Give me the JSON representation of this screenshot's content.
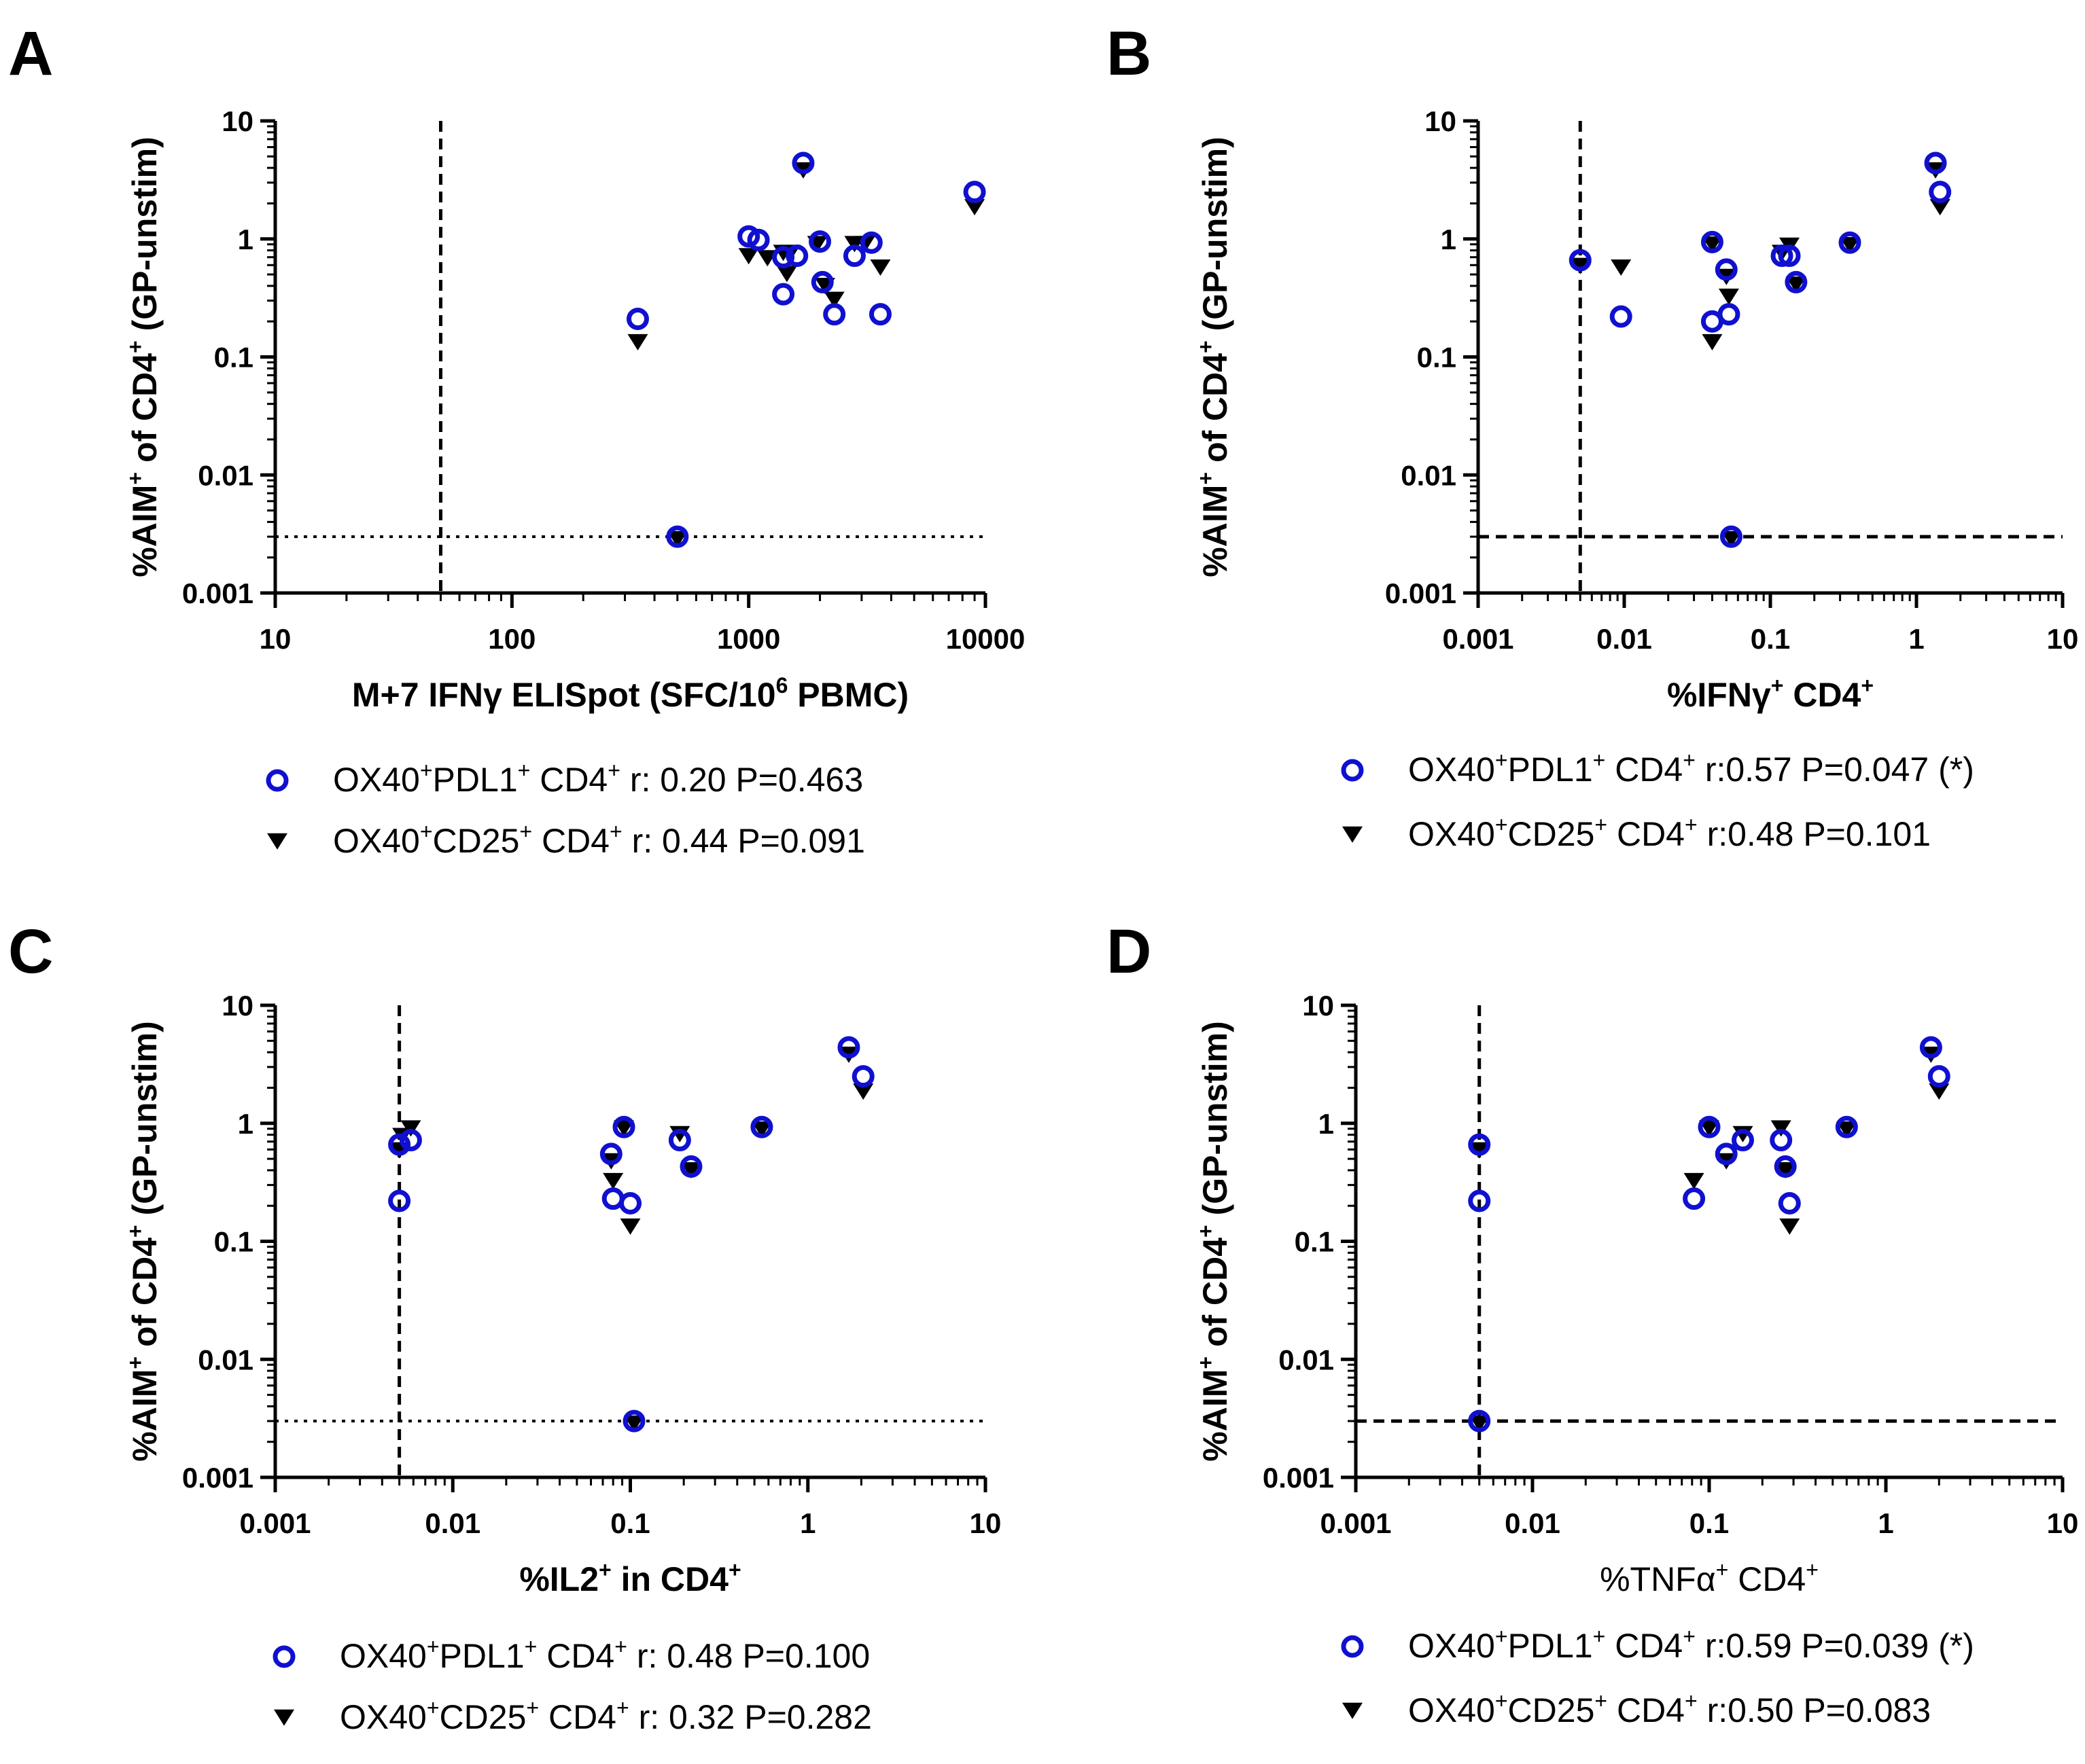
{
  "colors": {
    "series1": "#1010d0",
    "series2": "#000000",
    "axis": "#000000"
  },
  "chart_data": [
    {
      "panel": "A",
      "type": "scatter",
      "xlabel": "M+7 IFNγ ELISpot (SFC/10^6 PBMC)",
      "xlabel_parts": [
        "M+7 IFNγ ELISpot (SFC/10",
        "6",
        " PBMC)"
      ],
      "xlabel_style": "bold",
      "ylabel": "%AIM+ of CD4+ (GP-unstim)",
      "ylabel_parts": [
        "%AIM",
        "+",
        " of CD4",
        "+",
        " (GP-unstim)"
      ],
      "xscale": "log",
      "yscale": "log",
      "xlim": [
        10,
        10000
      ],
      "ylim": [
        0.001,
        10
      ],
      "xticks": [
        "10",
        "100",
        "1000",
        "10000"
      ],
      "yticks": [
        "0.001",
        "0.01",
        "0.1",
        "1",
        "10"
      ],
      "ref_lines": [
        {
          "orientation": "vertical",
          "value": 50,
          "style": "dashed"
        },
        {
          "orientation": "horizontal",
          "value": 0.003,
          "style": "dotted"
        }
      ],
      "series": [
        {
          "name": "OX40+PDL1+ CD4+",
          "marker": "open-circle",
          "points": [
            [
              340,
              0.21
            ],
            [
              500,
              0.003
            ],
            [
              1000,
              1.05
            ],
            [
              1100,
              0.98
            ],
            [
              1400,
              0.7
            ],
            [
              1400,
              0.34
            ],
            [
              1600,
              0.72
            ],
            [
              1700,
              4.4
            ],
            [
              2000,
              0.95
            ],
            [
              2050,
              0.43
            ],
            [
              2300,
              0.23
            ],
            [
              2800,
              0.72
            ],
            [
              3300,
              0.93
            ],
            [
              3600,
              0.23
            ],
            [
              9000,
              2.5
            ]
          ]
        },
        {
          "name": "OX40+CD25+ CD4+",
          "marker": "filled-triangle-down",
          "points": [
            [
              340,
              0.14
            ],
            [
              500,
              0.003
            ],
            [
              1000,
              0.75
            ],
            [
              1200,
              0.72
            ],
            [
              1400,
              0.8
            ],
            [
              1450,
              0.53
            ],
            [
              1500,
              0.8
            ],
            [
              1700,
              4.0
            ],
            [
              1950,
              0.95
            ],
            [
              2100,
              0.42
            ],
            [
              2300,
              0.32
            ],
            [
              2800,
              0.95
            ],
            [
              3100,
              0.95
            ],
            [
              3600,
              0.6
            ],
            [
              9000,
              1.95
            ]
          ]
        }
      ],
      "legend": [
        {
          "series": 0,
          "label_parts": [
            "OX40",
            "+",
            "PDL1",
            "+",
            " CD4",
            "+",
            " r: 0.20 P=0.463"
          ]
        },
        {
          "series": 1,
          "label_parts": [
            "OX40",
            "+",
            "CD25",
            "+",
            " CD4",
            "+",
            " r: 0.44 P=0.091"
          ]
        }
      ]
    },
    {
      "panel": "B",
      "type": "scatter",
      "xlabel": "%IFNγ+ CD4+",
      "xlabel_parts": [
        "%IFNγ",
        "+",
        " CD4",
        "+"
      ],
      "xlabel_style": "bold",
      "ylabel": "%AIM+ of CD4+ (GP-unstim)",
      "ylabel_parts": [
        "%AIM",
        "+",
        " of CD4",
        "+",
        " (GP-unstim)"
      ],
      "xscale": "log",
      "yscale": "log",
      "xlim": [
        0.001,
        10
      ],
      "ylim": [
        0.001,
        10
      ],
      "xticks": [
        "0.001",
        "0.01",
        "0.1",
        "1",
        "10"
      ],
      "yticks": [
        "0.001",
        "0.01",
        "0.1",
        "1",
        "10"
      ],
      "ref_lines": [
        {
          "orientation": "vertical",
          "value": 0.005,
          "style": "dashed"
        },
        {
          "orientation": "horizontal",
          "value": 0.003,
          "style": "dashed"
        }
      ],
      "series": [
        {
          "name": "OX40+PDL1+ CD4+",
          "marker": "open-circle",
          "points": [
            [
              0.005,
              0.66
            ],
            [
              0.0095,
              0.22
            ],
            [
              0.04,
              0.94
            ],
            [
              0.04,
              0.2
            ],
            [
              0.05,
              0.55
            ],
            [
              0.052,
              0.23
            ],
            [
              0.054,
              0.003
            ],
            [
              0.12,
              0.72
            ],
            [
              0.135,
              0.72
            ],
            [
              0.15,
              0.43
            ],
            [
              0.35,
              0.93
            ],
            [
              1.35,
              4.4
            ],
            [
              1.45,
              2.5
            ]
          ]
        },
        {
          "name": "OX40+CD25+ CD4+",
          "marker": "filled-triangle-down",
          "points": [
            [
              0.005,
              0.62
            ],
            [
              0.0095,
              0.6
            ],
            [
              0.04,
              0.94
            ],
            [
              0.04,
              0.14
            ],
            [
              0.05,
              0.5
            ],
            [
              0.052,
              0.34
            ],
            [
              0.054,
              0.003
            ],
            [
              0.12,
              0.8
            ],
            [
              0.135,
              0.92
            ],
            [
              0.15,
              0.43
            ],
            [
              0.35,
              0.93
            ],
            [
              1.35,
              4.0
            ],
            [
              1.45,
              1.95
            ]
          ]
        }
      ],
      "legend": [
        {
          "series": 0,
          "label_parts": [
            "OX40",
            "+",
            "PDL1",
            "+",
            " CD4",
            "+",
            " r:0.57 P=0.047 (*)"
          ]
        },
        {
          "series": 1,
          "label_parts": [
            "OX40",
            "+",
            "CD25",
            "+",
            " CD4",
            "+",
            " r:0.48 P=0.101"
          ]
        }
      ]
    },
    {
      "panel": "C",
      "type": "scatter",
      "xlabel": "%IL2+ in CD4+",
      "xlabel_parts": [
        "%IL2",
        "+",
        " in CD4",
        "+"
      ],
      "xlabel_style": "bold",
      "ylabel": "%AIM+ of CD4+ (GP-unstim)",
      "ylabel_parts": [
        "%AIM",
        "+",
        " of CD4",
        "+",
        " (GP-unstim)"
      ],
      "xscale": "log",
      "yscale": "log",
      "xlim": [
        0.001,
        10
      ],
      "ylim": [
        0.001,
        10
      ],
      "xticks": [
        "0.001",
        "0.01",
        "0.1",
        "1",
        "10"
      ],
      "yticks": [
        "0.001",
        "0.01",
        "0.1",
        "1",
        "10"
      ],
      "ref_lines": [
        {
          "orientation": "vertical",
          "value": 0.005,
          "style": "dashed"
        },
        {
          "orientation": "horizontal",
          "value": 0.003,
          "style": "dotted"
        }
      ],
      "series": [
        {
          "name": "OX40+PDL1+ CD4+",
          "marker": "open-circle",
          "points": [
            [
              0.005,
              0.66
            ],
            [
              0.005,
              0.22
            ],
            [
              0.0058,
              0.72
            ],
            [
              0.078,
              0.55
            ],
            [
              0.08,
              0.23
            ],
            [
              0.092,
              0.93
            ],
            [
              0.1,
              0.21
            ],
            [
              0.105,
              0.003
            ],
            [
              0.19,
              0.72
            ],
            [
              0.22,
              0.43
            ],
            [
              0.55,
              0.93
            ],
            [
              1.7,
              4.4
            ],
            [
              2.05,
              2.5
            ]
          ]
        },
        {
          "name": "OX40+CD25+ CD4+",
          "marker": "filled-triangle-down",
          "points": [
            [
              0.005,
              0.62
            ],
            [
              0.0052,
              0.82
            ],
            [
              0.0058,
              0.95
            ],
            [
              0.078,
              0.5
            ],
            [
              0.08,
              0.34
            ],
            [
              0.092,
              0.95
            ],
            [
              0.1,
              0.14
            ],
            [
              0.105,
              0.003
            ],
            [
              0.19,
              0.85
            ],
            [
              0.22,
              0.42
            ],
            [
              0.55,
              0.93
            ],
            [
              1.7,
              4.0
            ],
            [
              2.05,
              1.95
            ]
          ]
        }
      ],
      "legend": [
        {
          "series": 0,
          "label_parts": [
            "OX40",
            "+",
            "PDL1",
            "+",
            " CD4",
            "+",
            " r: 0.48 P=0.100"
          ]
        },
        {
          "series": 1,
          "label_parts": [
            "OX40",
            "+",
            "CD25",
            "+",
            " CD4",
            "+",
            " r: 0.32 P=0.282"
          ]
        }
      ]
    },
    {
      "panel": "D",
      "type": "scatter",
      "xlabel": "%TNFα+ CD4+",
      "xlabel_parts": [
        "%TNFα",
        "+",
        " CD4",
        "+"
      ],
      "xlabel_style": "plain",
      "ylabel": "%AIM+ of CD4+ (GP-unstim)",
      "ylabel_parts": [
        "%AIM",
        "+",
        " of CD4",
        "+",
        " (GP-unstim)"
      ],
      "xscale": "log",
      "yscale": "log",
      "xlim": [
        0.001,
        10
      ],
      "ylim": [
        0.001,
        10
      ],
      "xticks": [
        "0.001",
        "0.01",
        "0.1",
        "1",
        "10"
      ],
      "yticks": [
        "0.001",
        "0.01",
        "0.1",
        "1",
        "10"
      ],
      "ref_lines": [
        {
          "orientation": "vertical",
          "value": 0.005,
          "style": "dashed"
        },
        {
          "orientation": "horizontal",
          "value": 0.003,
          "style": "dashed"
        }
      ],
      "series": [
        {
          "name": "OX40+PDL1+ CD4+",
          "marker": "open-circle",
          "points": [
            [
              0.005,
              0.66
            ],
            [
              0.005,
              0.22
            ],
            [
              0.005,
              0.003
            ],
            [
              0.082,
              0.23
            ],
            [
              0.1,
              0.93
            ],
            [
              0.125,
              0.55
            ],
            [
              0.155,
              0.72
            ],
            [
              0.255,
              0.72
            ],
            [
              0.27,
              0.43
            ],
            [
              0.285,
              0.21
            ],
            [
              0.6,
              0.93
            ],
            [
              1.8,
              4.4
            ],
            [
              2.0,
              2.5
            ]
          ]
        },
        {
          "name": "OX40+CD25+ CD4+",
          "marker": "filled-triangle-down",
          "points": [
            [
              0.005,
              0.62
            ],
            [
              0.005,
              0.003
            ],
            [
              0.082,
              0.34
            ],
            [
              0.1,
              0.95
            ],
            [
              0.125,
              0.5
            ],
            [
              0.155,
              0.85
            ],
            [
              0.255,
              0.95
            ],
            [
              0.27,
              0.42
            ],
            [
              0.285,
              0.14
            ],
            [
              0.6,
              0.93
            ],
            [
              1.8,
              4.0
            ],
            [
              2.0,
              1.95
            ]
          ]
        }
      ],
      "legend": [
        {
          "series": 0,
          "label_parts": [
            "OX40",
            "+",
            "PDL1",
            "+",
            " CD4",
            "+",
            " r:0.59 P=0.039 (*)"
          ]
        },
        {
          "series": 1,
          "label_parts": [
            "OX40",
            "+",
            "CD25",
            "+",
            " CD4",
            "+",
            " r:0.50 P=0.083"
          ]
        }
      ]
    }
  ]
}
